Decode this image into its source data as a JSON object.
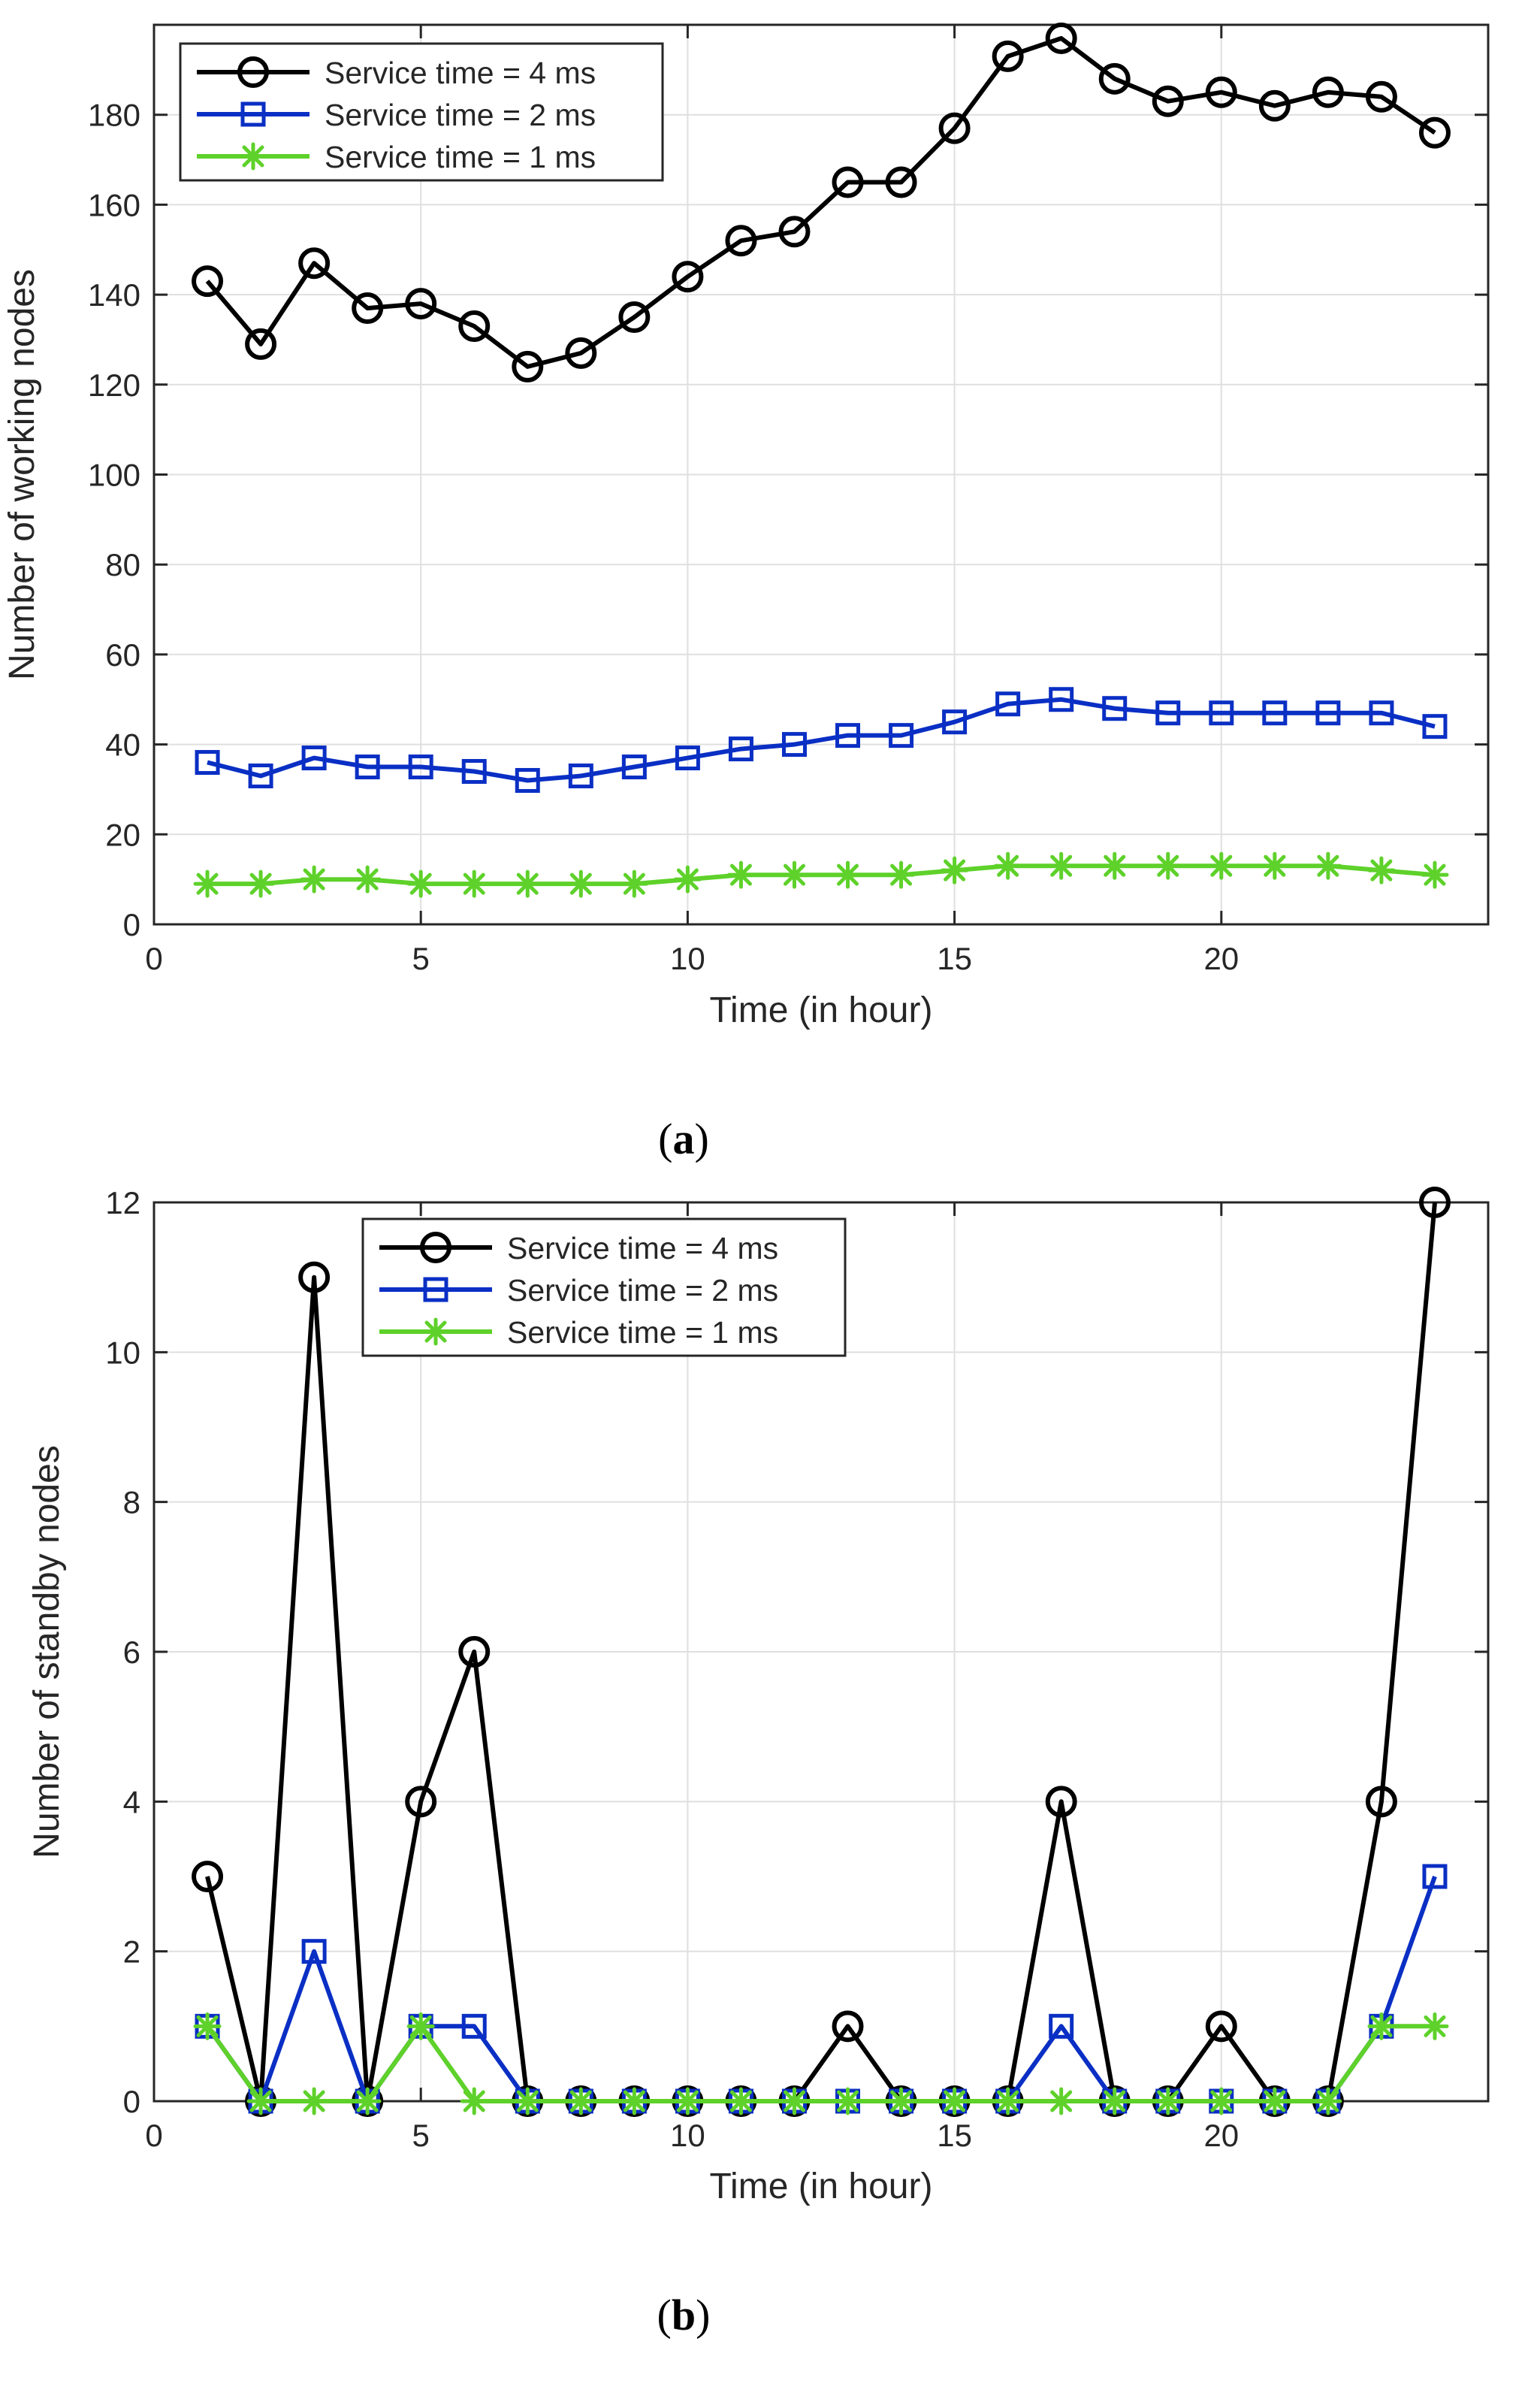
{
  "chart_data": [
    {
      "type": "line",
      "panel_label": "a",
      "xlabel": "Time (in hour)",
      "ylabel": "Number of working nodes",
      "xlim": [
        0,
        25
      ],
      "ylim": [
        0,
        200
      ],
      "xticks": [
        0,
        5,
        10,
        15,
        20
      ],
      "yticks": [
        0,
        20,
        40,
        60,
        80,
        100,
        120,
        140,
        160,
        180
      ],
      "grid": true,
      "legend_position": "top-left",
      "x": [
        1,
        2,
        3,
        4,
        5,
        6,
        7,
        8,
        9,
        10,
        11,
        12,
        13,
        14,
        15,
        16,
        17,
        18,
        19,
        20,
        21,
        22,
        23,
        24
      ],
      "series": [
        {
          "name": "Service time = 4 ms",
          "color": "#000000",
          "marker": "circle",
          "values": [
            143,
            129,
            147,
            137,
            138,
            133,
            124,
            127,
            135,
            144,
            152,
            154,
            165,
            165,
            177,
            193,
            197,
            188,
            183,
            185,
            182,
            185,
            184,
            176
          ]
        },
        {
          "name": "Service time = 2 ms",
          "color": "#0a2fc4",
          "marker": "square",
          "values": [
            36,
            33,
            37,
            35,
            35,
            34,
            32,
            33,
            35,
            37,
            39,
            40,
            42,
            42,
            45,
            49,
            50,
            48,
            47,
            47,
            47,
            47,
            47,
            44
          ]
        },
        {
          "name": "Service time = 1 ms",
          "color": "#5ed12a",
          "marker": "asterisk",
          "values": [
            9,
            9,
            10,
            10,
            9,
            9,
            9,
            9,
            9,
            10,
            11,
            11,
            11,
            11,
            12,
            13,
            13,
            13,
            13,
            13,
            13,
            13,
            12,
            11
          ]
        }
      ]
    },
    {
      "type": "line",
      "panel_label": "b",
      "xlabel": "Time (in hour)",
      "ylabel": "Number of standby nodes",
      "xlim": [
        0,
        25
      ],
      "ylim": [
        0,
        12
      ],
      "xticks": [
        0,
        5,
        10,
        15,
        20
      ],
      "yticks": [
        0,
        2,
        4,
        6,
        8,
        10,
        12
      ],
      "grid": true,
      "legend_position": "top-center",
      "x": [
        1,
        2,
        3,
        4,
        5,
        6,
        7,
        8,
        9,
        10,
        11,
        12,
        13,
        14,
        15,
        16,
        17,
        18,
        19,
        20,
        21,
        22,
        23,
        24
      ],
      "series": [
        {
          "name": "Service time = 4 ms",
          "color": "#000000",
          "marker": "circle",
          "values": [
            3,
            0,
            11,
            0,
            4,
            6,
            0,
            0,
            0,
            0,
            0,
            0,
            1,
            0,
            0,
            0,
            4,
            0,
            0,
            1,
            0,
            0,
            4,
            12
          ]
        },
        {
          "name": "Service time = 2 ms",
          "color": "#0a2fc4",
          "marker": "square",
          "values": [
            1,
            0,
            2,
            0,
            1,
            1,
            0,
            0,
            0,
            0,
            0,
            0,
            0,
            0,
            0,
            0,
            1,
            0,
            0,
            0,
            0,
            0,
            1,
            3
          ]
        },
        {
          "name": "Service time = 1 ms",
          "color": "#5ed12a",
          "marker": "asterisk",
          "values": [
            1,
            0,
            0,
            0,
            1,
            0,
            0,
            0,
            0,
            0,
            0,
            0,
            0,
            0,
            0,
            0,
            0,
            0,
            0,
            0,
            0,
            0,
            1,
            1
          ]
        }
      ]
    }
  ]
}
